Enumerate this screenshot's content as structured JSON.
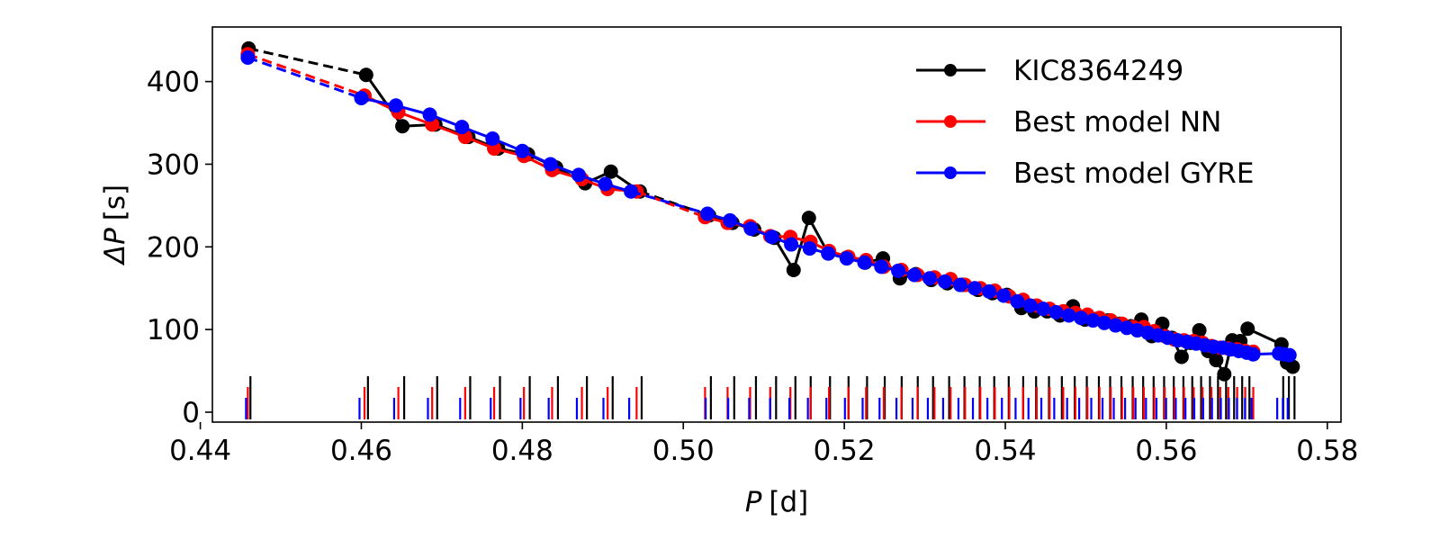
{
  "chart_data": {
    "type": "line",
    "xlabel_var": "P",
    "xlabel_unit": "[d]",
    "ylabel_var": "ΔP",
    "ylabel_unit": "[s]",
    "xlim": [
      0.4415,
      0.5817
    ],
    "ylim": [
      -12,
      466
    ],
    "xticks": [
      0.44,
      0.46,
      0.48,
      0.5,
      0.52,
      0.54,
      0.56,
      0.58
    ],
    "xtick_labels": [
      "0.44",
      "0.46",
      "0.48",
      "0.50",
      "0.52",
      "0.54",
      "0.56",
      "0.58"
    ],
    "yticks": [
      0,
      100,
      200,
      300,
      400
    ],
    "ytick_labels": [
      "0",
      "100",
      "200",
      "300",
      "400"
    ],
    "legend_position": "top-right",
    "series": [
      {
        "name": "KIC8364249",
        "color": "#000000",
        "marker_offset": 12,
        "period_markers": [
          0.446,
          0.4606,
          0.4651,
          0.4692,
          0.4733,
          0.477,
          0.4807,
          0.4842,
          0.4878,
          0.491,
          0.4946,
          0.5032,
          0.5061,
          0.5088,
          0.5113,
          0.5137,
          0.5156,
          0.518,
          0.5203,
          0.5226,
          0.5248,
          0.5269,
          0.5289,
          0.5308,
          0.5328,
          0.5347,
          0.5366,
          0.5384,
          0.5402,
          0.542,
          0.5436,
          0.5452,
          0.5468,
          0.5484,
          0.5499,
          0.5514,
          0.5528,
          0.5542,
          0.5556,
          0.5569,
          0.5582,
          0.5595,
          0.5607,
          0.5619,
          0.563,
          0.5641,
          0.5652,
          0.5662,
          0.5672,
          0.5682,
          0.5692,
          0.5701,
          0.5743,
          0.575,
          0.5757
        ],
        "x": [
          0.446,
          0.4606,
          0.4651,
          0.4692,
          0.4733,
          0.477,
          0.4807,
          0.4842,
          0.4878,
          0.491,
          0.4946,
          0.5032,
          0.5061,
          0.5088,
          0.5113,
          0.5137,
          0.5156,
          0.518,
          0.5203,
          0.5226,
          0.5248,
          0.5269,
          0.5289,
          0.5308,
          0.5328,
          0.5347,
          0.5366,
          0.5384,
          0.5402,
          0.542,
          0.5436,
          0.5452,
          0.5468,
          0.5484,
          0.5499,
          0.5514,
          0.5528,
          0.5542,
          0.5556,
          0.5569,
          0.5582,
          0.5595,
          0.5607,
          0.5619,
          0.563,
          0.5641,
          0.5652,
          0.5662,
          0.5672,
          0.5682,
          0.5692,
          0.5701,
          0.5743,
          0.575,
          0.5757
        ],
        "y": [
          440,
          408,
          346,
          348,
          333,
          319,
          312,
          296,
          277,
          291,
          267,
          238,
          229,
          221,
          211,
          172,
          235,
          192,
          187,
          181,
          186,
          162,
          167,
          160,
          156,
          154,
          148,
          144,
          142,
          126,
          122,
          122,
          117,
          128,
          112,
          113,
          111,
          107,
          104,
          112,
          92,
          107,
          90,
          67,
          84,
          99,
          74,
          63,
          46,
          87,
          86,
          101,
          82,
          60,
          55
        ]
      },
      {
        "name": "Best model NN",
        "color": "#ff0000",
        "marker_offset": 0,
        "period_markers": [
          0.4459,
          0.4604,
          0.4646,
          0.4688,
          0.4729,
          0.4765,
          0.4802,
          0.4837,
          0.4874,
          0.4906,
          0.4942,
          0.5027,
          0.5055,
          0.5083,
          0.5108,
          0.5133,
          0.5158,
          0.5181,
          0.5205,
          0.5227,
          0.5249,
          0.5271,
          0.5291,
          0.5312,
          0.5332,
          0.535,
          0.5369,
          0.5387,
          0.5405,
          0.5422,
          0.5439,
          0.5455,
          0.5472,
          0.5487,
          0.5502,
          0.5517,
          0.5531,
          0.5545,
          0.5559,
          0.5572,
          0.5585,
          0.5598,
          0.561,
          0.5622,
          0.5634,
          0.5645,
          0.5656,
          0.5667,
          0.5677,
          0.5688,
          0.5698,
          0.5708
        ],
        "x": [
          0.4459,
          0.4604,
          0.4646,
          0.4688,
          0.4729,
          0.4765,
          0.4802,
          0.4837,
          0.4874,
          0.4906,
          0.4942,
          0.5027,
          0.5055,
          0.5083,
          0.5108,
          0.5133,
          0.5158,
          0.5181,
          0.5205,
          0.5227,
          0.5249,
          0.5271,
          0.5291,
          0.5312,
          0.5332,
          0.535,
          0.5369,
          0.5387,
          0.5405,
          0.5422,
          0.5439,
          0.5455,
          0.5472,
          0.5487,
          0.5502,
          0.5517,
          0.5531,
          0.5545,
          0.5559,
          0.5572,
          0.5585,
          0.5598,
          0.561,
          0.5622,
          0.5634,
          0.5645,
          0.5656,
          0.5667,
          0.5677,
          0.5688,
          0.5698,
          0.5708
        ],
        "y": [
          433,
          383,
          363,
          348,
          333,
          319,
          310,
          293,
          282,
          270,
          267,
          236,
          229,
          225,
          213,
          212,
          206,
          195,
          188,
          184,
          176,
          172,
          166,
          163,
          161,
          154,
          150,
          147,
          140,
          136,
          129,
          125,
          122,
          120,
          118,
          114,
          111,
          107,
          103,
          103,
          98,
          92,
          88,
          87,
          86,
          84,
          80,
          78,
          77,
          76,
          74,
          73
        ]
      },
      {
        "name": "Best model GYRE",
        "color": "#0000ff",
        "marker_offset": -12,
        "period_markers": [
          0.4459,
          0.46,
          0.4643,
          0.4685,
          0.4725,
          0.4763,
          0.48,
          0.4835,
          0.487,
          0.4903,
          0.4935,
          0.503,
          0.5058,
          0.5084,
          0.511,
          0.5134,
          0.5157,
          0.518,
          0.5203,
          0.5225,
          0.5246,
          0.5267,
          0.5287,
          0.5306,
          0.5325,
          0.5344,
          0.5362,
          0.538,
          0.5398,
          0.5415,
          0.5431,
          0.5447,
          0.5463,
          0.5479,
          0.5494,
          0.5509,
          0.5523,
          0.5537,
          0.5551,
          0.5564,
          0.5577,
          0.559,
          0.5602,
          0.5614,
          0.5626,
          0.5637,
          0.5648,
          0.5659,
          0.567,
          0.568,
          0.569,
          0.57,
          0.5708,
          0.574,
          0.5747,
          0.5753
        ],
        "x": [
          0.4459,
          0.46,
          0.4643,
          0.4685,
          0.4725,
          0.4763,
          0.48,
          0.4835,
          0.487,
          0.4903,
          0.4935,
          0.503,
          0.5058,
          0.5084,
          0.511,
          0.5134,
          0.5157,
          0.518,
          0.5203,
          0.5225,
          0.5246,
          0.5267,
          0.5287,
          0.5306,
          0.5325,
          0.5344,
          0.5362,
          0.538,
          0.5398,
          0.5415,
          0.5431,
          0.5447,
          0.5463,
          0.5479,
          0.5494,
          0.5509,
          0.5523,
          0.5537,
          0.5551,
          0.5564,
          0.5577,
          0.559,
          0.5602,
          0.5614,
          0.5626,
          0.5637,
          0.5648,
          0.5659,
          0.567,
          0.568,
          0.569,
          0.57,
          0.5708,
          0.574,
          0.5747,
          0.5753
        ],
        "y": [
          429,
          380,
          371,
          360,
          345,
          331,
          316,
          300,
          287,
          276,
          267,
          240,
          232,
          222,
          212,
          203,
          198,
          192,
          186,
          181,
          176,
          171,
          166,
          162,
          158,
          154,
          150,
          146,
          141,
          134,
          129,
          125,
          121,
          117,
          114,
          111,
          108,
          105,
          102,
          99,
          96,
          93,
          90,
          87,
          85,
          83,
          81,
          79,
          78,
          76,
          74,
          72,
          70,
          71,
          70,
          69
        ]
      }
    ]
  }
}
